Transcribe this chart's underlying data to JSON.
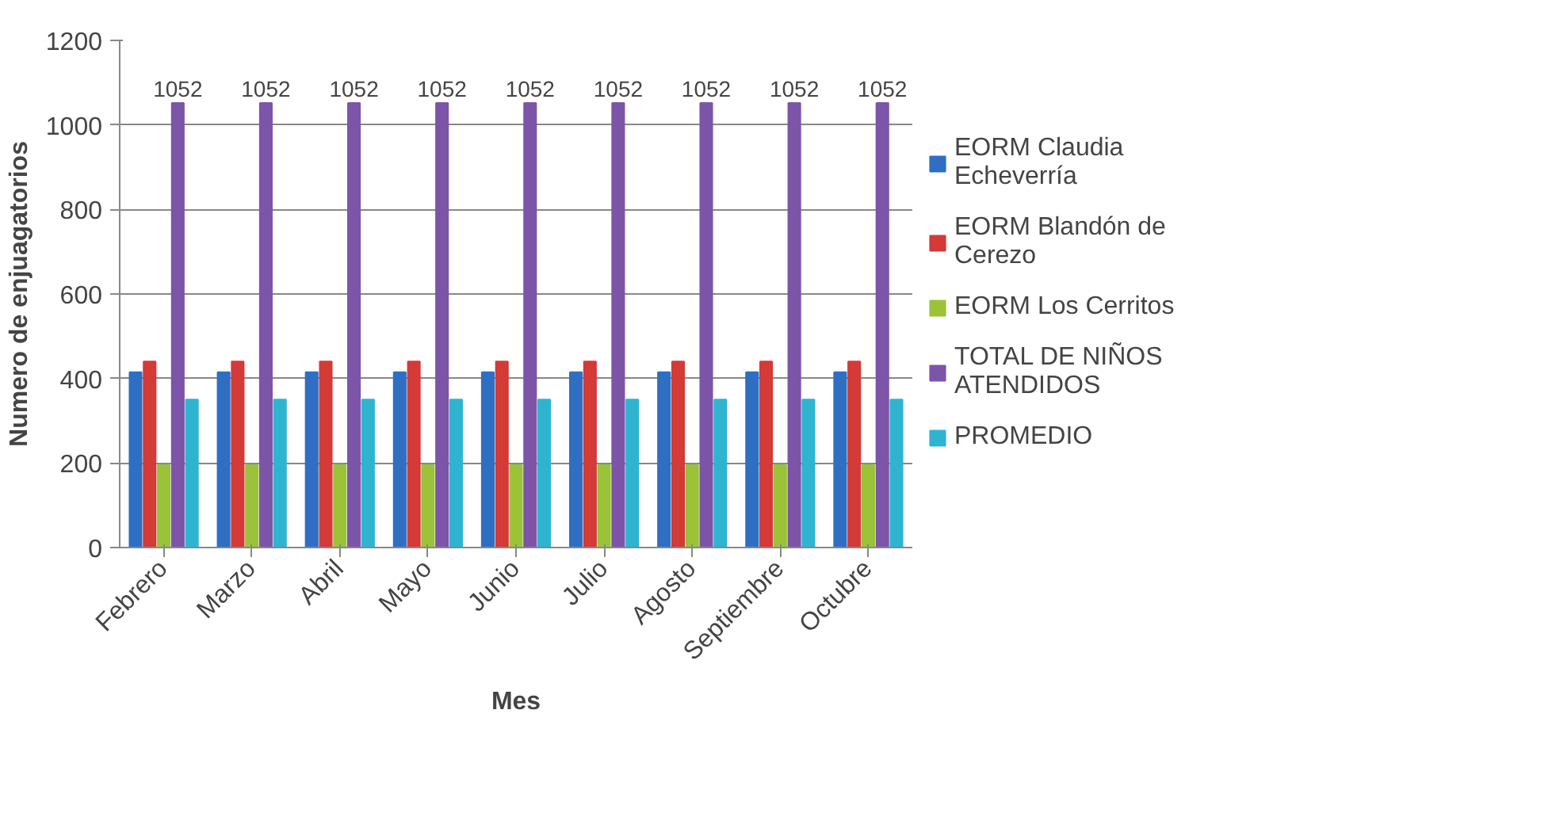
{
  "chart_data": {
    "type": "bar",
    "xlabel": "Mes",
    "ylabel": "Numero de enjuagatorios",
    "categories": [
      "Febrero",
      "Marzo",
      "Abril",
      "Mayo",
      "Junio",
      "Julio",
      "Agosto",
      "Septiembre",
      "Octubre"
    ],
    "series": [
      {
        "name": "EORM Claudia Echeverría",
        "color": "#2e6fc4",
        "values": [
          415,
          415,
          415,
          415,
          415,
          415,
          415,
          415,
          415
        ]
      },
      {
        "name": "EORM Blandón de Cerezo",
        "color": "#d43a36",
        "values": [
          440,
          440,
          440,
          440,
          440,
          440,
          440,
          440,
          440
        ]
      },
      {
        "name": "EORM Los Cerritos",
        "color": "#9bc33a",
        "values": [
          195,
          195,
          195,
          195,
          195,
          195,
          195,
          195,
          195
        ]
      },
      {
        "name": "TOTAL DE NIÑOS ATENDIDOS",
        "color": "#7c55a8",
        "values": [
          1052,
          1052,
          1052,
          1052,
          1052,
          1052,
          1052,
          1052,
          1052
        ],
        "value_labels": [
          "1052",
          "1052",
          "1052",
          "1052",
          "1052",
          "1052",
          "1052",
          "1052",
          "1052"
        ]
      },
      {
        "name": "PROMEDIO",
        "color": "#2fb4d0",
        "values": [
          350,
          350,
          350,
          350,
          350,
          350,
          350,
          350,
          350
        ]
      }
    ],
    "ylim": [
      0,
      1200
    ],
    "yticks": [
      0,
      200,
      400,
      600,
      800,
      1000,
      1200
    ],
    "grid": "y",
    "legend": "right"
  }
}
